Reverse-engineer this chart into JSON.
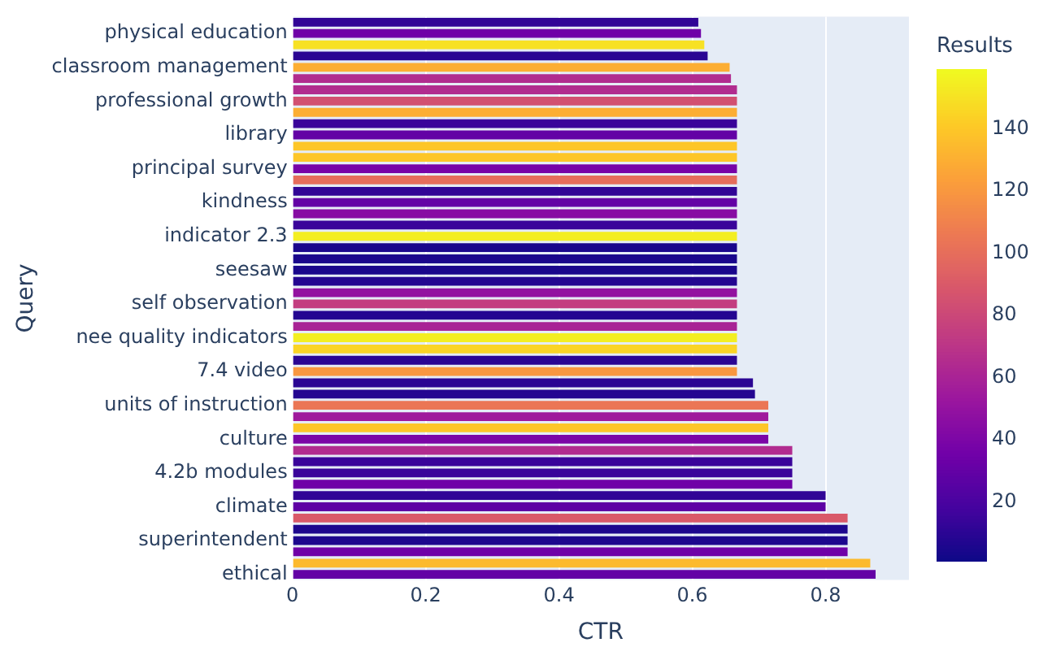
{
  "chart_data": {
    "type": "bar",
    "orientation": "horizontal",
    "xlabel": "CTR",
    "ylabel": "Query",
    "clabel": "Results",
    "categories": [
      null,
      "physical education",
      null,
      null,
      "classroom management",
      null,
      null,
      "professional growth",
      null,
      null,
      "library",
      null,
      null,
      "principal survey",
      null,
      null,
      "kindness",
      null,
      null,
      "indicator 2.3",
      null,
      null,
      "seesaw",
      null,
      null,
      "self observation",
      null,
      null,
      "nee quality indicators",
      null,
      null,
      "7.4 video",
      null,
      null,
      "units of instruction",
      null,
      null,
      "culture",
      null,
      null,
      "4.2b modules",
      null,
      null,
      "climate",
      null,
      null,
      "superintendent",
      null,
      null,
      "ethical"
    ],
    "values": [
      0.609,
      0.613,
      0.618,
      0.623,
      0.656,
      0.658,
      0.667,
      0.667,
      0.667,
      0.667,
      0.667,
      0.667,
      0.667,
      0.667,
      0.667,
      0.667,
      0.667,
      0.667,
      0.667,
      0.667,
      0.667,
      0.667,
      0.667,
      0.667,
      0.667,
      0.667,
      0.667,
      0.667,
      0.667,
      0.667,
      0.667,
      0.667,
      0.691,
      0.694,
      0.714,
      0.714,
      0.714,
      0.714,
      0.75,
      0.75,
      0.75,
      0.75,
      0.8,
      0.8,
      0.833,
      0.833,
      0.833,
      0.833,
      0.867,
      0.875
    ],
    "cvalues": [
      12,
      35,
      150,
      10,
      130,
      65,
      65,
      85,
      130,
      15,
      30,
      140,
      140,
      38,
      100,
      12,
      30,
      45,
      15,
      155,
      5,
      5,
      5,
      8,
      50,
      75,
      8,
      60,
      155,
      145,
      10,
      120,
      10,
      8,
      105,
      55,
      140,
      40,
      65,
      15,
      15,
      35,
      12,
      28,
      90,
      6,
      6,
      35,
      135,
      30
    ],
    "xlim": [
      0,
      0.925
    ],
    "xticks": [
      0,
      0.2,
      0.4,
      0.6,
      0.8
    ],
    "clim": [
      1,
      159
    ],
    "cticks": [
      20,
      40,
      60,
      80,
      100,
      120,
      140
    ],
    "grid": "x",
    "legend": false
  }
}
